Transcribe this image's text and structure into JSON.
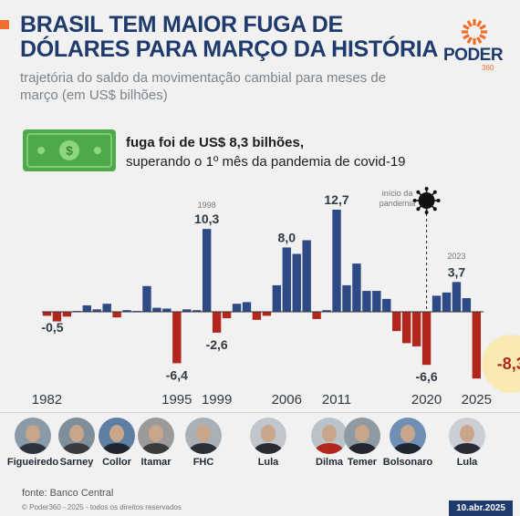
{
  "header": {
    "title": "BRASIL TEM MAIOR FUGA DE DÓLARES PARA MARÇO DA HISTÓRIA",
    "subtitle": "trajetória do saldo da movimentação cambial para meses de março (em US$ bilhões)",
    "accent_color": "#ef6e2b"
  },
  "logo": {
    "word": "PODER",
    "suffix": "360",
    "color": "#1f3b6d",
    "accent": "#ef6e2b"
  },
  "callout": {
    "icon": "banknote-icon",
    "bold_text": "fuga foi de US$ 8,3 bilhões,",
    "text": "superando o 1º mês da pandemia de covid-19"
  },
  "annotations": {
    "pandemic_label_line1": "início da",
    "pandemic_label_line2": "pandemia",
    "pandemic_icon": "virus-icon",
    "year_1998": "1998",
    "year_2023": "2023"
  },
  "chart_data": {
    "type": "bar",
    "unit": "US$ bilhões",
    "positive_color": "#2d4a87",
    "negative_color": "#b3261e",
    "highlight_color": "#fbe9b4",
    "x": [
      1982,
      1983,
      1984,
      1985,
      1986,
      1987,
      1988,
      1989,
      1990,
      1991,
      1992,
      1993,
      1994,
      1995,
      1996,
      1997,
      1998,
      1999,
      2000,
      2001,
      2002,
      2003,
      2004,
      2005,
      2006,
      2007,
      2008,
      2009,
      2010,
      2011,
      2012,
      2013,
      2014,
      2015,
      2016,
      2017,
      2018,
      2019,
      2020,
      2021,
      2022,
      2023,
      2024,
      2025
    ],
    "values": [
      -0.5,
      -1.2,
      -0.6,
      0.1,
      0.8,
      0.3,
      1.0,
      -0.7,
      0.2,
      0.1,
      3.2,
      0.5,
      0.4,
      -6.4,
      0.3,
      0.2,
      10.3,
      -2.6,
      -0.8,
      1.0,
      1.2,
      -1.0,
      -0.5,
      3.3,
      8.0,
      7.2,
      8.9,
      -0.9,
      0.2,
      12.7,
      3.3,
      6.0,
      2.6,
      2.6,
      1.6,
      -2.4,
      -3.9,
      -4.3,
      -6.6,
      2.0,
      2.4,
      3.7,
      1.7,
      -8.3
    ],
    "value_labels": [
      {
        "year": 1982,
        "text": "-0,5"
      },
      {
        "year": 1995,
        "text": "-6,4"
      },
      {
        "year": 1998,
        "text": "10,3"
      },
      {
        "year": 1999,
        "text": "-2,6"
      },
      {
        "year": 2006,
        "text": "8,0"
      },
      {
        "year": 2011,
        "text": "12,7"
      },
      {
        "year": 2020,
        "text": "-6,6"
      },
      {
        "year": 2023,
        "text": "3,7"
      },
      {
        "year": 2025,
        "text": "-8,3"
      }
    ],
    "tick_labels": [
      "1982",
      "1995",
      "1999",
      "2006",
      "2011",
      "2020",
      "2025"
    ],
    "ylim": [
      -8.3,
      12.7
    ]
  },
  "presidents": [
    {
      "name": "Figueiredo",
      "bg": "#8a9aa6",
      "suit": "#2c3440"
    },
    {
      "name": "Sarney",
      "bg": "#7f8f99",
      "suit": "#3a3a40"
    },
    {
      "name": "Collor",
      "bg": "#5b7ea2",
      "suit": "#1f2530"
    },
    {
      "name": "Itamar",
      "bg": "#9a9a9a",
      "suit": "#3b3b3b"
    },
    {
      "name": "FHC",
      "bg": "#a8b0b8",
      "suit": "#2a2f38"
    },
    {
      "name": "Lula",
      "bg": "#c0c6cc",
      "suit": "#2b2b35"
    },
    {
      "name": "Dilma",
      "bg": "#b9c3c9",
      "suit": "#b3261e"
    },
    {
      "name": "Temer",
      "bg": "#8f9aa2",
      "suit": "#22262e"
    },
    {
      "name": "Bolsonaro",
      "bg": "#6f8fb5",
      "suit": "#1e2632"
    },
    {
      "name": "Lula",
      "bg": "#c9cfd4",
      "suit": "#2b2b35"
    }
  ],
  "footer": {
    "source": "fonte: Banco Central",
    "copyright": "© Poder360 - 2025 - todos os direitos reservados",
    "date": "10.abr.2025"
  }
}
